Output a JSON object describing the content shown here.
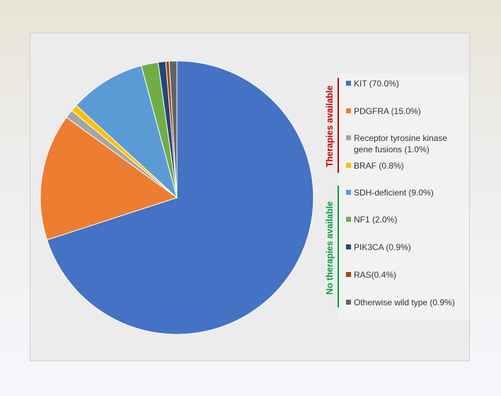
{
  "chart_data": {
    "type": "pie",
    "title": "",
    "slices": [
      {
        "label": "KIT (70.0%)",
        "value": 70.0,
        "color": "#4472c4"
      },
      {
        "label": "PDGFRA (15.0%)",
        "value": 15.0,
        "color": "#ed7d31"
      },
      {
        "label": "Receptor tyrosine kinase gene fusions (1.0%)",
        "lines": [
          "Receptor tyrosine kinase",
          "gene fusions (1.0%)"
        ],
        "value": 1.0,
        "color": "#a5a5a5"
      },
      {
        "label": "BRAF (0.8%)",
        "value": 0.8,
        "color": "#ffc000"
      },
      {
        "label": "SDH-deficient (9.0%)",
        "value": 9.0,
        "color": "#5b9bd5"
      },
      {
        "label": "NF1 (2.0%)",
        "value": 2.0,
        "color": "#70ad47"
      },
      {
        "label": "PIK3CA (0.9%)",
        "value": 0.9,
        "color": "#264478"
      },
      {
        "label": "RAS(0.4%)",
        "value": 0.4,
        "color": "#9e480e"
      },
      {
        "label": "Otherwise wild type (0.9%)",
        "value": 0.9,
        "color": "#636363"
      }
    ],
    "groups": [
      {
        "label": "Therapies available",
        "color": "#c00000",
        "members": [
          0,
          1,
          2,
          3
        ]
      },
      {
        "label": "No therapies available",
        "color": "#00a040",
        "members": [
          4,
          5,
          6,
          7,
          8
        ]
      }
    ],
    "legend": "right"
  }
}
